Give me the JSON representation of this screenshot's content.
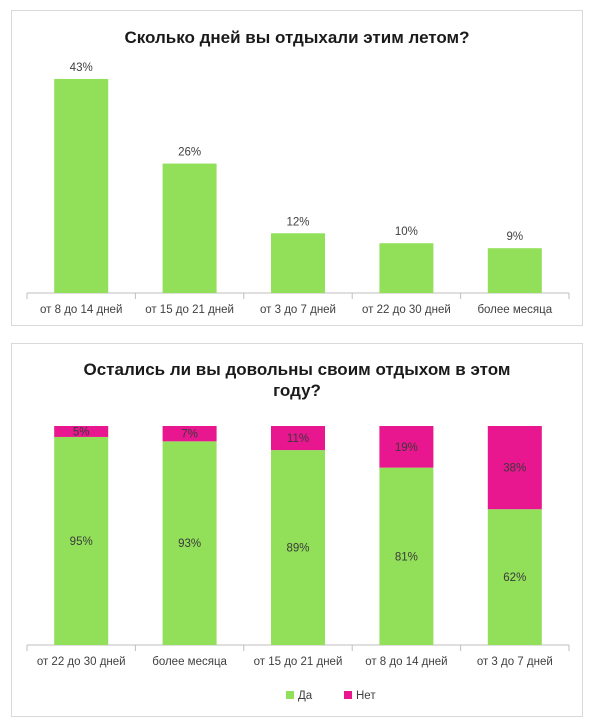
{
  "colors": {
    "green": "#92e05a",
    "magenta": "#e8168f",
    "axis": "#bfbfbf",
    "text": "#404040"
  },
  "chart_data": [
    {
      "type": "bar",
      "title": "Сколько дней вы отдыхали этим летом?",
      "categories": [
        "от 8 до 14 дней",
        "от 15 до 21 дней",
        "от 3 до 7 дней",
        "от 22 до 30 дней",
        "более месяца"
      ],
      "values": [
        43,
        26,
        12,
        10,
        9
      ],
      "data_labels": [
        "43%",
        "26%",
        "12%",
        "10%",
        "9%"
      ],
      "ylim": [
        0,
        45
      ],
      "grid": false,
      "legend": "none",
      "series_color": "#92e05a"
    },
    {
      "type": "bar",
      "stacked": true,
      "percent": true,
      "title": "Остались ли вы довольны своим отдыхом в этом году?",
      "title_lines": [
        "Остались ли вы довольны своим отдыхом в этом",
        "году?"
      ],
      "categories": [
        "от 22 до 30 дней",
        "более месяца",
        "от 15 до 21 дней",
        "от 8 до 14 дней",
        "от 3 до 7 дней"
      ],
      "series": [
        {
          "name": "Да",
          "values": [
            95,
            93,
            89,
            81,
            62
          ],
          "labels": [
            "95%",
            "93%",
            "89%",
            "81%",
            "62%"
          ],
          "color": "#92e05a"
        },
        {
          "name": "Нет",
          "values": [
            5,
            7,
            11,
            19,
            38
          ],
          "labels": [
            "5%",
            "7%",
            "11%",
            "19%",
            "38%"
          ],
          "color": "#e8168f"
        }
      ],
      "ylim": [
        0,
        100
      ],
      "grid": false,
      "legend": "bottom"
    }
  ]
}
